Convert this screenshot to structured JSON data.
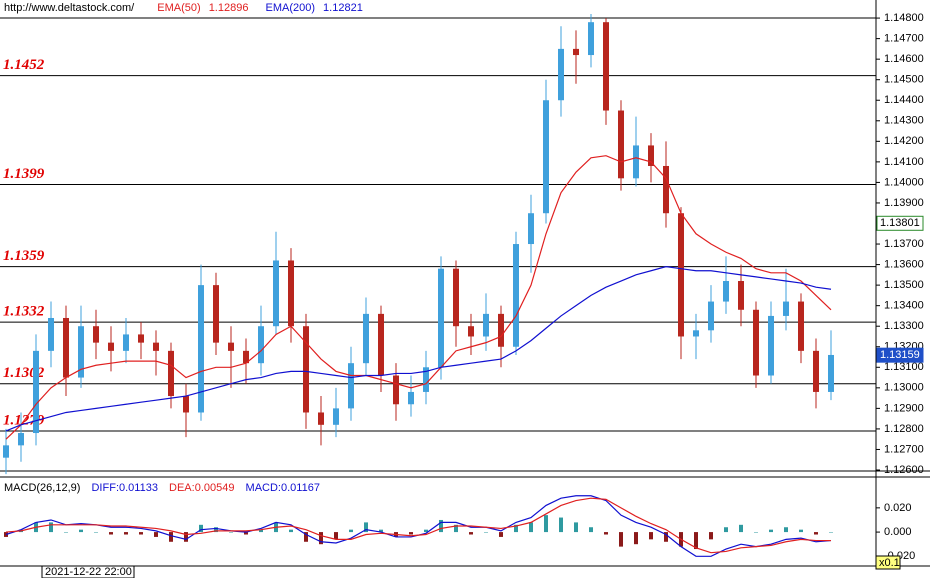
{
  "chart_data": [
    {
      "type": "candlestick",
      "title": "http://www.deltastock.com/",
      "up_color": "#3fa0dc",
      "down_color": "#b8261e",
      "ylim": [
        1.126,
        1.14888
      ],
      "yticks": [
        {
          "value": 1.126,
          "label": "1.12600"
        },
        {
          "value": 1.127,
          "label": "1.12700"
        },
        {
          "value": 1.128,
          "label": "1.12800"
        },
        {
          "value": 1.129,
          "label": "1.12900"
        },
        {
          "value": 1.13,
          "label": "1.13000"
        },
        {
          "value": 1.131,
          "label": "1.13100"
        },
        {
          "value": 1.132,
          "label": "1.13200"
        },
        {
          "value": 1.133,
          "label": "1.13300"
        },
        {
          "value": 1.134,
          "label": "1.13400"
        },
        {
          "value": 1.135,
          "label": "1.13500"
        },
        {
          "value": 1.136,
          "label": "1.13600"
        },
        {
          "value": 1.137,
          "label": "1.13700"
        },
        {
          "value": 1.138,
          "label": "1.13800"
        },
        {
          "value": 1.139,
          "label": "1.13900"
        },
        {
          "value": 1.14,
          "label": "1.14000"
        },
        {
          "value": 1.141,
          "label": "1.14100"
        },
        {
          "value": 1.142,
          "label": "1.14200"
        },
        {
          "value": 1.143,
          "label": "1.14300"
        },
        {
          "value": 1.144,
          "label": "1.14400"
        },
        {
          "value": 1.145,
          "label": "1.14500"
        },
        {
          "value": 1.146,
          "label": "1.14600"
        },
        {
          "value": 1.147,
          "label": "1.14700"
        },
        {
          "value": 1.148,
          "label": "1.14800"
        }
      ],
      "levels": [
        1.1452,
        1.1399,
        1.1359,
        1.1332,
        1.1302,
        1.1279
      ],
      "level_color": "#e00000",
      "crosshair_price": 1.13801,
      "current_price": 1.13159,
      "open": [
        1.1266,
        1.1272,
        1.1278,
        1.1318,
        1.1334,
        1.1305,
        1.133,
        1.1322,
        1.1318,
        1.1326,
        1.1322,
        1.1318,
        1.1296,
        1.1288,
        1.135,
        1.1322,
        1.1318,
        1.1312,
        1.133,
        1.1362,
        1.133,
        1.1288,
        1.1282,
        1.129,
        1.1312,
        1.1336,
        1.1306,
        1.1292,
        1.1298,
        1.131,
        1.1358,
        1.133,
        1.1325,
        1.1336,
        1.132,
        1.137,
        1.1385,
        1.144,
        1.1465,
        1.1462,
        1.1478,
        1.1435,
        1.1402,
        1.1418,
        1.1408,
        1.1385,
        1.1325,
        1.1328,
        1.1342,
        1.1352,
        1.1338,
        1.1306,
        1.1335,
        1.1342,
        1.1318,
        1.1298
      ],
      "high": [
        1.128,
        1.1288,
        1.1326,
        1.1342,
        1.134,
        1.134,
        1.1338,
        1.133,
        1.1334,
        1.1332,
        1.1328,
        1.1322,
        1.1302,
        1.136,
        1.1356,
        1.133,
        1.1324,
        1.134,
        1.1376,
        1.1368,
        1.1336,
        1.1296,
        1.13,
        1.132,
        1.1344,
        1.134,
        1.1312,
        1.1306,
        1.1318,
        1.1364,
        1.1362,
        1.1336,
        1.1346,
        1.134,
        1.1376,
        1.1394,
        1.145,
        1.1476,
        1.1474,
        1.1482,
        1.148,
        1.144,
        1.1432,
        1.1424,
        1.142,
        1.1388,
        1.1336,
        1.135,
        1.1364,
        1.136,
        1.1342,
        1.1342,
        1.1358,
        1.1346,
        1.1324,
        1.1328
      ],
      "low": [
        1.1258,
        1.1264,
        1.1272,
        1.131,
        1.1296,
        1.13,
        1.1314,
        1.1308,
        1.1312,
        1.1314,
        1.1306,
        1.129,
        1.1276,
        1.1284,
        1.1316,
        1.13,
        1.1302,
        1.1306,
        1.1326,
        1.1322,
        1.128,
        1.1272,
        1.1276,
        1.1284,
        1.1306,
        1.1298,
        1.1284,
        1.1286,
        1.1292,
        1.1304,
        1.132,
        1.1316,
        1.1318,
        1.131,
        1.1316,
        1.1356,
        1.138,
        1.1432,
        1.1448,
        1.1456,
        1.1428,
        1.1396,
        1.1398,
        1.14,
        1.1378,
        1.1314,
        1.1314,
        1.1322,
        1.1336,
        1.133,
        1.13,
        1.1302,
        1.1328,
        1.1312,
        1.129,
        1.1294
      ],
      "close": [
        1.1272,
        1.1278,
        1.1318,
        1.1334,
        1.1305,
        1.133,
        1.1322,
        1.1318,
        1.1326,
        1.1322,
        1.1318,
        1.1296,
        1.1288,
        1.135,
        1.1322,
        1.1318,
        1.1312,
        1.133,
        1.1362,
        1.133,
        1.1288,
        1.1282,
        1.129,
        1.1312,
        1.1336,
        1.1306,
        1.1292,
        1.1298,
        1.131,
        1.1358,
        1.133,
        1.1325,
        1.1336,
        1.132,
        1.137,
        1.1385,
        1.144,
        1.1465,
        1.1462,
        1.1478,
        1.1435,
        1.1402,
        1.1418,
        1.1408,
        1.1385,
        1.1325,
        1.1328,
        1.1342,
        1.1352,
        1.1338,
        1.1306,
        1.1335,
        1.1342,
        1.1318,
        1.1298,
        1.1316
      ],
      "series": [
        {
          "name": "EMA(50)",
          "color": "#e02020",
          "readout": 1.12896,
          "values": [
            1.1275,
            1.1282,
            1.1292,
            1.13,
            1.1305,
            1.1309,
            1.1311,
            1.1312,
            1.1313,
            1.1313,
            1.1313,
            1.1311,
            1.1305,
            1.1308,
            1.131,
            1.131,
            1.1312,
            1.1318,
            1.1326,
            1.133,
            1.1322,
            1.1314,
            1.1308,
            1.1306,
            1.1306,
            1.1304,
            1.1302,
            1.13,
            1.1302,
            1.131,
            1.1318,
            1.132,
            1.1322,
            1.1325,
            1.1335,
            1.135,
            1.1375,
            1.1395,
            1.1405,
            1.1412,
            1.1413,
            1.141,
            1.1412,
            1.141,
            1.1402,
            1.1385,
            1.1375,
            1.137,
            1.1366,
            1.1363,
            1.1358,
            1.1356,
            1.1356,
            1.1352,
            1.1345,
            1.1338
          ]
        },
        {
          "name": "EMA(200)",
          "color": "#1010d0",
          "readout": 1.12821,
          "values": [
            1.1279,
            1.1282,
            1.1284,
            1.1286,
            1.1288,
            1.1289,
            1.129,
            1.1291,
            1.1292,
            1.1293,
            1.1294,
            1.1295,
            1.1296,
            1.1298,
            1.13,
            1.1302,
            1.1304,
            1.1305,
            1.1307,
            1.1308,
            1.1308,
            1.1307,
            1.1306,
            1.1305,
            1.1306,
            1.1306,
            1.1307,
            1.1307,
            1.1308,
            1.131,
            1.1311,
            1.1312,
            1.1313,
            1.1314,
            1.1318,
            1.1323,
            1.1329,
            1.1335,
            1.134,
            1.1345,
            1.1349,
            1.1352,
            1.1355,
            1.1357,
            1.1359,
            1.1358,
            1.1357,
            1.1357,
            1.1356,
            1.1355,
            1.1354,
            1.1353,
            1.1352,
            1.1351,
            1.1349,
            1.1348
          ]
        }
      ]
    },
    {
      "type": "macd",
      "title": "MACD(26,12,9)",
      "ylim": [
        -0.028,
        0.043
      ],
      "yticks": [
        {
          "value": 0.02,
          "label": "0.020"
        },
        {
          "value": 0,
          "label": "0.000"
        },
        {
          "value": -0.02,
          "label": "-0.020"
        }
      ],
      "scale_label": "x0.1",
      "time_label": "2021-12-22 22:00",
      "series": [
        {
          "name": "DIFF",
          "color": "#1010d0",
          "readout": 0.01133,
          "values": [
            -0.002,
            0.002,
            0.008,
            0.01,
            0.006,
            0.007,
            0.006,
            0.004,
            0.004,
            0.003,
            0.001,
            -0.003,
            -0.006,
            0.002,
            0.003,
            0.001,
            0,
            0.003,
            0.008,
            0.006,
            -0.002,
            -0.008,
            -0.009,
            -0.005,
            0.002,
            0,
            -0.004,
            -0.004,
            -0.001,
            0.008,
            0.008,
            0.004,
            0.004,
            0.001,
            0.008,
            0.012,
            0.022,
            0.028,
            0.03,
            0.03,
            0.026,
            0.014,
            0.008,
            0.004,
            -0.002,
            -0.012,
            -0.02,
            -0.02,
            -0.014,
            -0.01,
            -0.012,
            -0.01,
            -0.006,
            -0.005,
            -0.008,
            -0.007
          ]
        },
        {
          "name": "DEA",
          "color": "#e02020",
          "readout": 0.00549,
          "values": [
            0,
            0.001,
            0.004,
            0.006,
            0.006,
            0.006,
            0.006,
            0.005,
            0.005,
            0.004,
            0.003,
            0.001,
            -0.002,
            -0.001,
            0.001,
            0.001,
            0.001,
            0.002,
            0.004,
            0.005,
            0.002,
            -0.003,
            -0.006,
            -0.006,
            -0.002,
            -0.001,
            -0.002,
            -0.003,
            -0.002,
            0.003,
            0.005,
            0.005,
            0.004,
            0.003,
            0.005,
            0.008,
            0.015,
            0.022,
            0.026,
            0.028,
            0.027,
            0.02,
            0.013,
            0.007,
            0.002,
            -0.006,
            -0.013,
            -0.017,
            -0.016,
            -0.013,
            -0.012,
            -0.011,
            -0.008,
            -0.006,
            -0.007,
            -0.007
          ]
        },
        {
          "name": "MACD",
          "color": "#1010d0",
          "readout": 0.01167,
          "up_color": "#2f9aa0",
          "down_color": "#8b1a1a",
          "values": [
            -0.004,
            0.002,
            0.008,
            0.008,
            0,
            0.002,
            0,
            -0.002,
            -0.002,
            -0.002,
            -0.004,
            -0.008,
            -0.008,
            0.006,
            0.004,
            0,
            -0.002,
            0.002,
            0.008,
            0.002,
            -0.008,
            -0.01,
            -0.006,
            0.002,
            0.008,
            0.002,
            -0.004,
            -0.002,
            0.002,
            0.01,
            0.006,
            -0.002,
            0,
            -0.004,
            0.006,
            0.008,
            0.014,
            0.012,
            0.008,
            0.004,
            -0.002,
            -0.012,
            -0.01,
            -0.006,
            -0.008,
            -0.012,
            -0.014,
            -0.006,
            0.004,
            0.006,
            0,
            0.002,
            0.004,
            0.002,
            -0.002,
            0
          ]
        }
      ]
    }
  ]
}
